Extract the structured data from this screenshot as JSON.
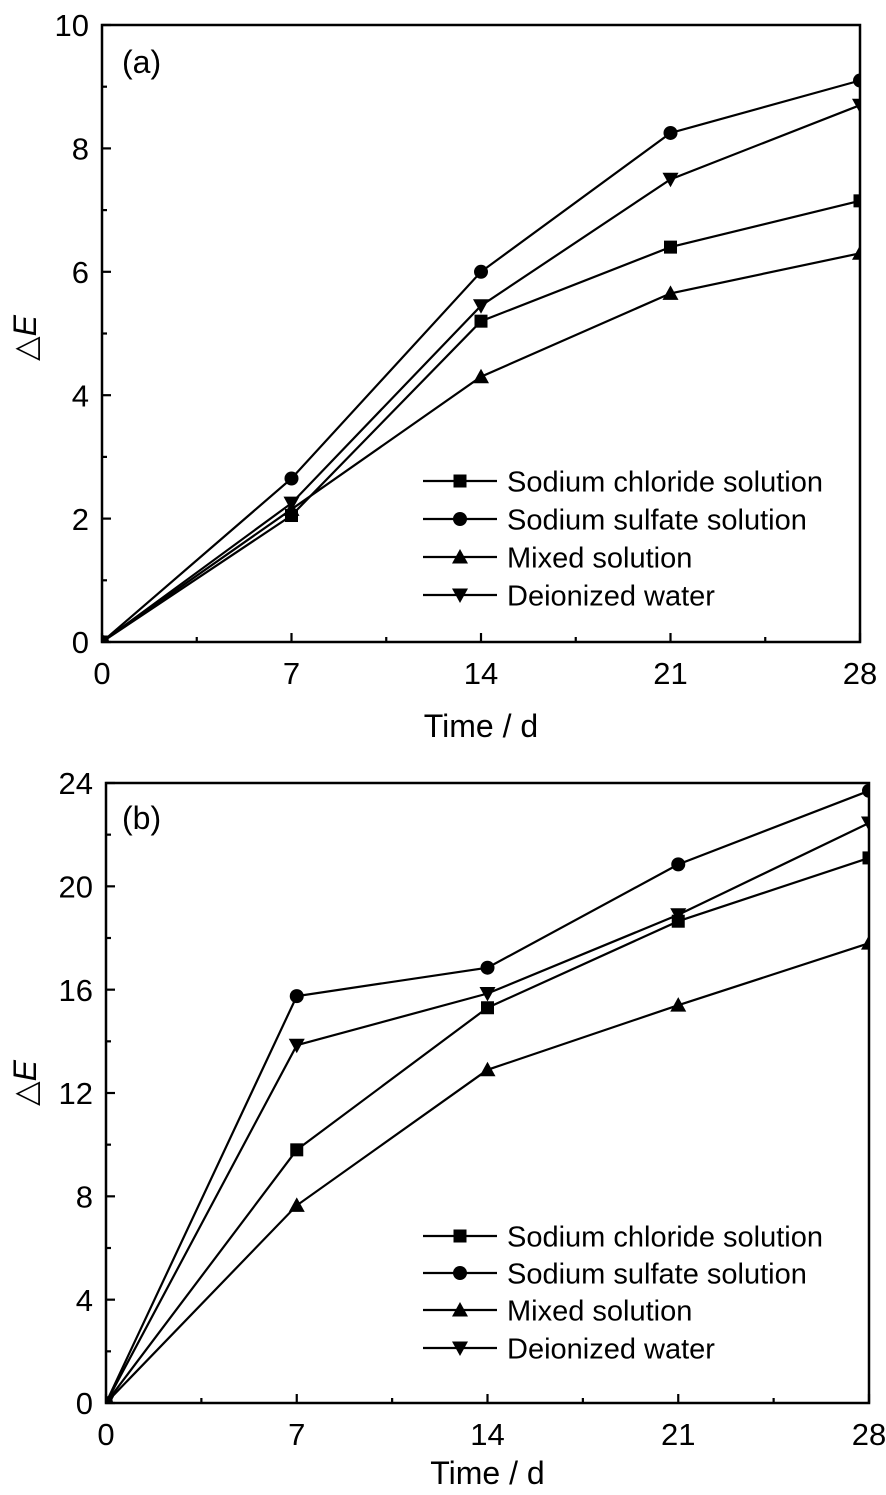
{
  "page": {
    "background": "#ffffff",
    "ink_color": "#000000"
  },
  "chart_data": [
    {
      "type": "line",
      "panel_label": "(a)",
      "title": "",
      "xlabel": "Time / d",
      "ylabel": "△E",
      "xlim": [
        0,
        28
      ],
      "ylim": [
        0,
        10
      ],
      "xticks": [
        0,
        7,
        14,
        21,
        28
      ],
      "yticks": [
        0,
        2,
        4,
        6,
        8,
        10
      ],
      "x_minor_step": 3.5,
      "y_minor_step": 1,
      "grid": false,
      "legend_position": "inside-lower-right",
      "x": [
        0,
        7,
        14,
        21,
        28
      ],
      "series": [
        {
          "name": "Sodium chloride solution",
          "marker": "square",
          "color": "#000000",
          "values": [
            0,
            2.05,
            5.2,
            6.4,
            7.15
          ]
        },
        {
          "name": "Sodium sulfate solution",
          "marker": "circle",
          "color": "#000000",
          "values": [
            0,
            2.65,
            6.0,
            8.25,
            9.1
          ]
        },
        {
          "name": "Mixed solution",
          "marker": "triangle-up",
          "color": "#000000",
          "values": [
            0,
            2.15,
            4.3,
            5.65,
            6.3
          ]
        },
        {
          "name": "Deionized water",
          "marker": "triangle-down",
          "color": "#000000",
          "values": [
            0,
            2.25,
            5.45,
            7.5,
            8.7
          ]
        }
      ]
    },
    {
      "type": "line",
      "panel_label": "(b)",
      "title": "",
      "xlabel": "Time / d",
      "ylabel": "△E",
      "xlim": [
        0,
        28
      ],
      "ylim": [
        0,
        24
      ],
      "xticks": [
        0,
        7,
        14,
        21,
        28
      ],
      "yticks": [
        0,
        4,
        8,
        12,
        16,
        20,
        24
      ],
      "x_minor_step": 3.5,
      "y_minor_step": 2,
      "grid": false,
      "legend_position": "inside-lower-right",
      "x": [
        0,
        7,
        14,
        21,
        28
      ],
      "series": [
        {
          "name": "Sodium chloride solution",
          "marker": "square",
          "color": "#000000",
          "values": [
            0,
            9.8,
            15.3,
            18.65,
            21.1
          ]
        },
        {
          "name": "Sodium sulfate solution",
          "marker": "circle",
          "color": "#000000",
          "values": [
            0,
            15.75,
            16.85,
            20.85,
            23.7
          ]
        },
        {
          "name": "Mixed solution",
          "marker": "triangle-up",
          "color": "#000000",
          "values": [
            0,
            7.65,
            12.9,
            15.4,
            17.8
          ]
        },
        {
          "name": "Deionized water",
          "marker": "triangle-down",
          "color": "#000000",
          "values": [
            0,
            13.85,
            15.85,
            18.9,
            22.45
          ]
        }
      ]
    }
  ]
}
